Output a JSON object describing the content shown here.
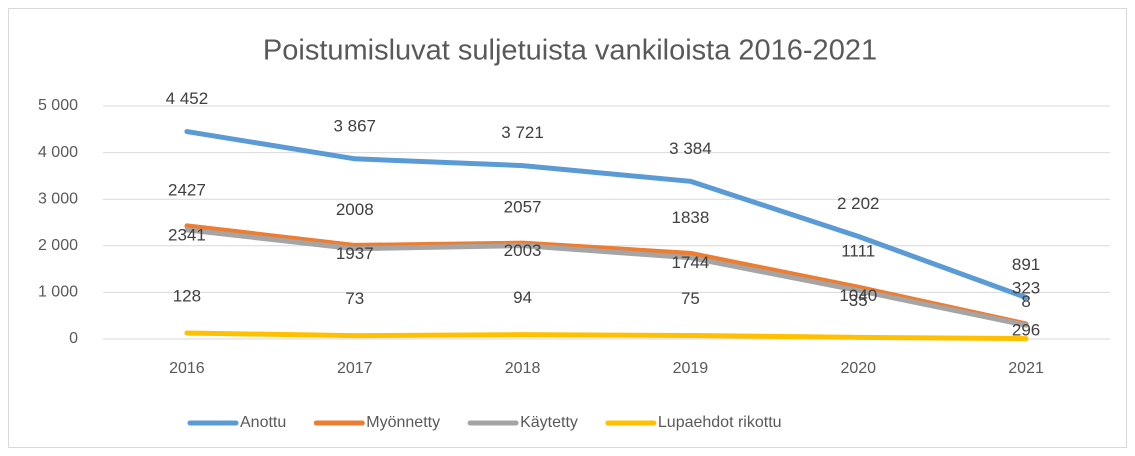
{
  "chart_data": {
    "type": "line",
    "title": "Poistumisluvat suljetuista vankiloista 2016-2021",
    "categories": [
      "2016",
      "2017",
      "2018",
      "2019",
      "2020",
      "2021"
    ],
    "series": [
      {
        "name": "Anottu",
        "color": "#5b9bd5",
        "values": [
          4452,
          3867,
          3721,
          3384,
          2202,
          891
        ],
        "value_labels": [
          "4 452",
          "3 867",
          "3 721",
          "3 384",
          "2 202",
          "891"
        ]
      },
      {
        "name": "Myönnetty",
        "color": "#ed7d31",
        "values": [
          2427,
          2008,
          2057,
          1838,
          1111,
          323
        ]
      },
      {
        "name": "Käytetty",
        "color": "#a5a5a5",
        "values": [
          2341,
          1937,
          2003,
          1744,
          1040,
          296
        ]
      },
      {
        "name": "Lupaehdot rikottu",
        "color": "#ffc000",
        "values": [
          128,
          73,
          94,
          75,
          35,
          8
        ]
      }
    ],
    "ylim": [
      0,
      5000
    ],
    "yticks": [
      0,
      {
        "value": 1000,
        "label": "1 000"
      },
      {
        "value": 2000,
        "label": "2 000"
      },
      {
        "value": 3000,
        "label": "3 000"
      },
      {
        "value": 4000,
        "label": "4 000"
      },
      {
        "value": 5000,
        "label": "5 000"
      }
    ],
    "grid": true,
    "legend": "bottom"
  }
}
